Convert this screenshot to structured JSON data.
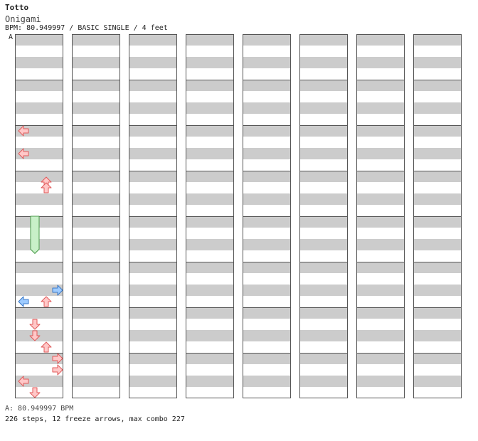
{
  "song": {
    "title": "Totto",
    "artist": "Onigami",
    "meta": "BPM: 80.949997 / BASIC SINGLE / 4 feet"
  },
  "segment_label": "A",
  "footer": {
    "bpm_line": "A: 80.949997 BPM",
    "stats_line": "226 steps, 12 freeze arrows, max combo 227"
  },
  "colors": {
    "stripe": "#cccccc",
    "red_fill": "#ffc8c8",
    "red_stroke": "#e05a5a",
    "blue_fill": "#9ecbff",
    "blue_stroke": "#3a78c8",
    "pink_fill": "#ffc8ff",
    "pink_stroke": "#c060c0",
    "freeze_fill": "#c8f0c8",
    "freeze_stroke": "#4a9a4a"
  },
  "columns": [
    {
      "notes": [
        {
          "b": 2,
          "s": 0,
          "l": 0
        },
        {
          "b": 2,
          "s": 4,
          "l": 0
        },
        {
          "b": 3,
          "s": 1,
          "l": 2
        },
        {
          "b": 3,
          "s": 2,
          "l": 2
        },
        {
          "b": 5,
          "s": 4,
          "l": 3,
          "c": "blue"
        },
        {
          "b": 5,
          "s": 6,
          "l": 0,
          "c": "blue"
        },
        {
          "b": 5,
          "s": 6,
          "l": 2
        },
        {
          "b": 6,
          "s": 2,
          "l": 1
        },
        {
          "b": 6,
          "s": 4,
          "l": 1
        },
        {
          "b": 6,
          "s": 6,
          "l": 2
        },
        {
          "b": 7,
          "s": 0,
          "l": 3
        },
        {
          "b": 7,
          "s": 2,
          "l": 3
        },
        {
          "b": 7,
          "s": 4,
          "l": 0
        },
        {
          "b": 7,
          "s": 6,
          "l": 1
        }
      ],
      "freezes": [
        {
          "lane": 1,
          "b": 4,
          "s": 0,
          "len": 2.9
        }
      ]
    },
    {
      "notes": []
    },
    {
      "notes": []
    },
    {
      "notes": []
    },
    {
      "notes": []
    },
    {
      "notes": []
    },
    {
      "notes": []
    },
    {
      "notes": []
    }
  ]
}
